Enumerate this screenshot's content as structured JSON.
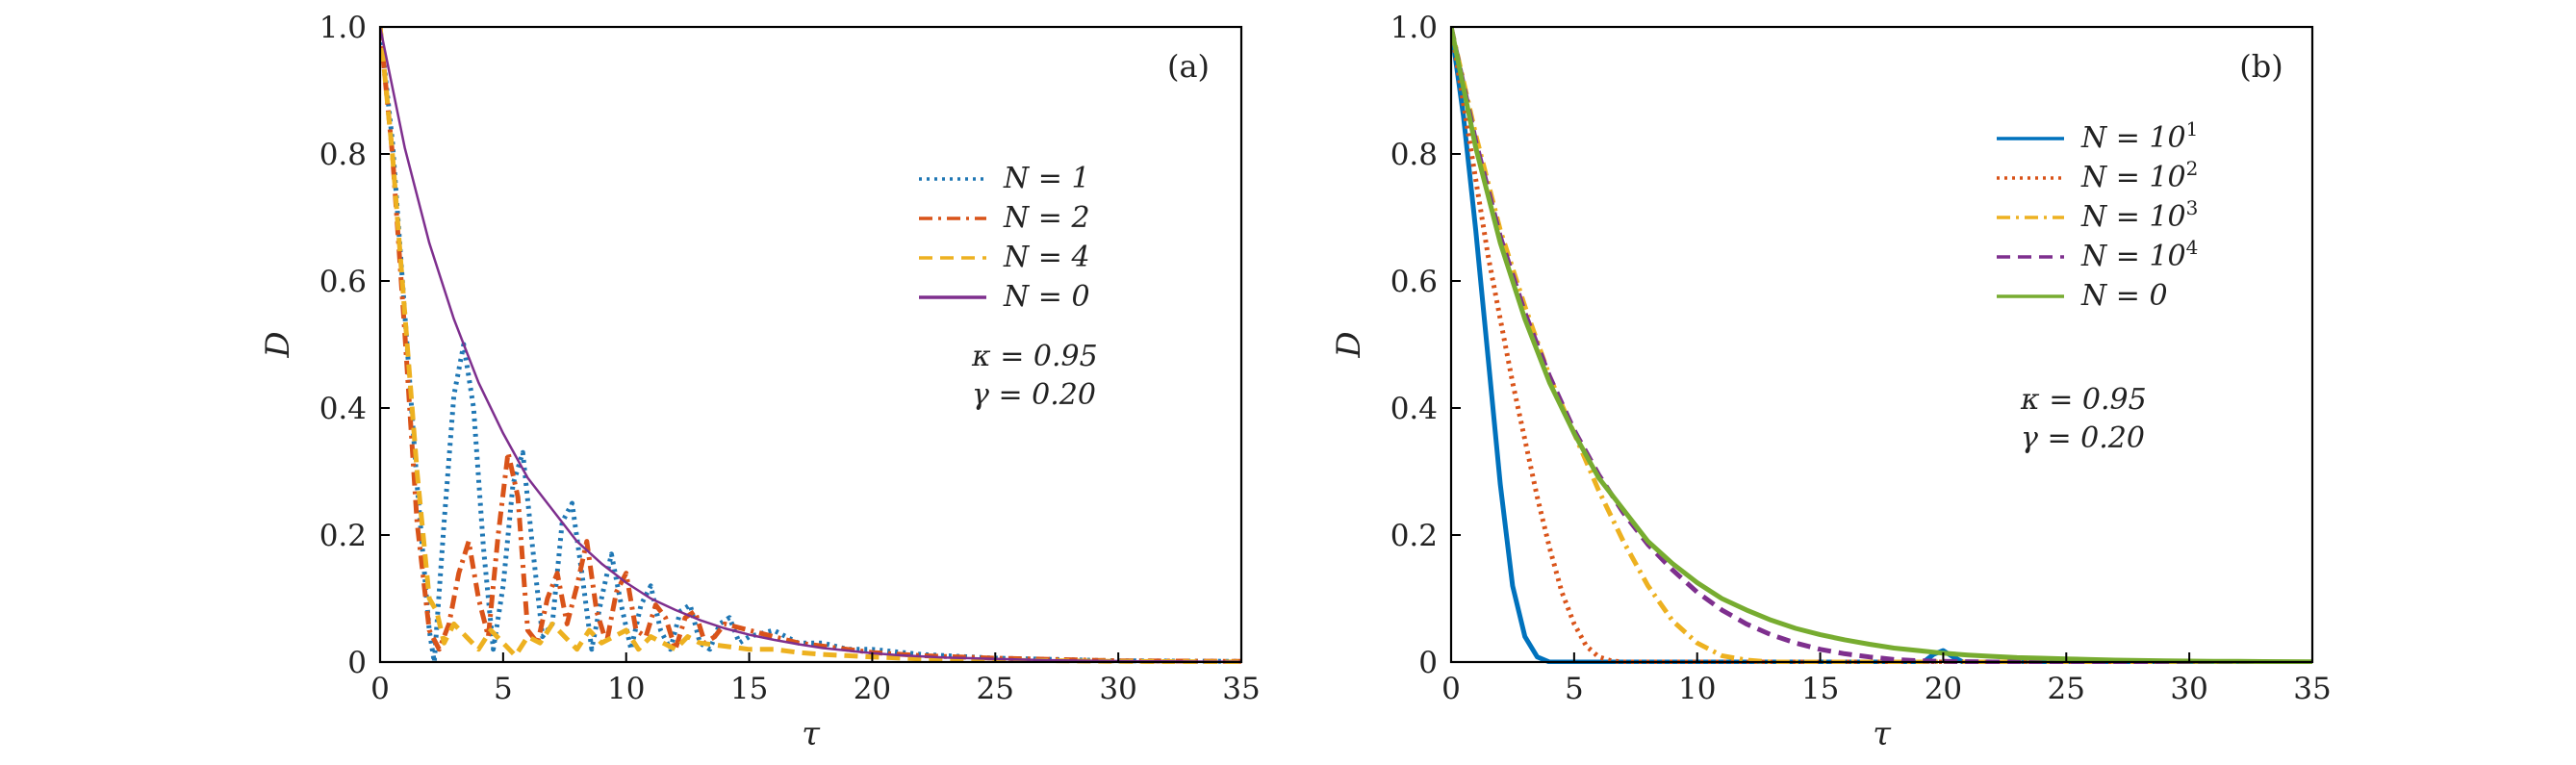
{
  "chart_data": [
    {
      "type": "line",
      "panel_label": "(a)",
      "xlabel": "τ",
      "ylabel": "D",
      "xlim": [
        0,
        35
      ],
      "ylim": [
        0,
        1.0
      ],
      "xticks": [
        "0",
        "5",
        "10",
        "15",
        "20",
        "25",
        "30",
        "35"
      ],
      "yticks": [
        "0",
        "0.2",
        "0.4",
        "0.6",
        "0.8",
        "1.0"
      ],
      "legend_position": "right",
      "annotations": [
        "κ = 0.95",
        "γ = 0.20"
      ],
      "series": [
        {
          "name_text": "N = 1",
          "color": "#1f77b4",
          "dash": "dotted",
          "x": [
            0,
            0.5,
            1.0,
            1.5,
            2.0,
            2.2,
            2.6,
            3.0,
            3.4,
            3.8,
            4.2,
            4.6,
            5.0,
            5.4,
            5.8,
            6.2,
            6.6,
            7.0,
            7.4,
            7.8,
            8.2,
            8.6,
            9.0,
            9.4,
            9.8,
            10.2,
            10.6,
            11.0,
            11.4,
            11.8,
            12.2,
            12.6,
            13.0,
            13.4,
            13.8,
            14.2,
            14.6,
            15.0,
            16.0,
            17.0,
            18.0,
            19.0,
            20.0,
            22.0,
            25.0,
            30.0,
            35.0
          ],
          "y": [
            1.0,
            0.82,
            0.55,
            0.28,
            0.05,
            0.0,
            0.22,
            0.42,
            0.5,
            0.4,
            0.18,
            0.02,
            0.12,
            0.28,
            0.33,
            0.18,
            0.04,
            0.06,
            0.22,
            0.25,
            0.14,
            0.02,
            0.1,
            0.17,
            0.09,
            0.02,
            0.09,
            0.12,
            0.05,
            0.02,
            0.08,
            0.09,
            0.03,
            0.02,
            0.06,
            0.07,
            0.03,
            0.04,
            0.05,
            0.03,
            0.03,
            0.02,
            0.02,
            0.012,
            0.006,
            0.002,
            0.001
          ]
        },
        {
          "name_text": "N = 2",
          "color": "#d95319",
          "dash": "dashdot",
          "x": [
            0,
            0.5,
            1.0,
            1.5,
            2.0,
            2.4,
            2.8,
            3.2,
            3.6,
            4.0,
            4.4,
            4.8,
            5.2,
            5.6,
            6.0,
            6.4,
            6.8,
            7.2,
            7.6,
            8.0,
            8.4,
            8.8,
            9.2,
            9.6,
            10.0,
            10.4,
            10.8,
            11.2,
            11.6,
            12.0,
            12.4,
            12.8,
            13.2,
            13.6,
            14.0,
            15.0,
            16.0,
            17.0,
            18.0,
            19.0,
            20.0,
            22.0,
            25.0,
            30.0,
            35.0
          ],
          "y": [
            1.0,
            0.8,
            0.52,
            0.22,
            0.05,
            0.02,
            0.06,
            0.14,
            0.19,
            0.1,
            0.04,
            0.2,
            0.33,
            0.26,
            0.05,
            0.03,
            0.1,
            0.14,
            0.06,
            0.12,
            0.19,
            0.08,
            0.03,
            0.11,
            0.14,
            0.05,
            0.04,
            0.09,
            0.07,
            0.02,
            0.07,
            0.08,
            0.03,
            0.04,
            0.06,
            0.05,
            0.04,
            0.03,
            0.025,
            0.02,
            0.015,
            0.01,
            0.006,
            0.002,
            0.001
          ]
        },
        {
          "name_text": "N = 4",
          "color": "#edb120",
          "dash": "dashed",
          "x": [
            0,
            0.5,
            1.0,
            1.5,
            2.0,
            2.3,
            2.6,
            3.0,
            3.5,
            4.0,
            4.5,
            5.0,
            5.5,
            6.0,
            6.5,
            7.0,
            7.5,
            8.0,
            8.5,
            9.0,
            9.5,
            10.0,
            10.5,
            11.0,
            11.5,
            12.0,
            12.5,
            13.0,
            14.0,
            15.0,
            16.0,
            17.0,
            18.0,
            19.0,
            20.0,
            22.0,
            25.0,
            30.0,
            35.0
          ],
          "y": [
            1.0,
            0.8,
            0.55,
            0.3,
            0.1,
            0.08,
            0.03,
            0.06,
            0.04,
            0.02,
            0.05,
            0.03,
            0.01,
            0.04,
            0.03,
            0.06,
            0.04,
            0.02,
            0.05,
            0.03,
            0.04,
            0.05,
            0.02,
            0.04,
            0.03,
            0.02,
            0.04,
            0.03,
            0.025,
            0.02,
            0.02,
            0.015,
            0.012,
            0.01,
            0.008,
            0.005,
            0.003,
            0.001,
            0.0
          ]
        },
        {
          "name_text": "N = 0",
          "color": "#7e2f8e",
          "dash": "solid",
          "x": [
            0,
            1,
            2,
            3,
            4,
            5,
            6,
            7,
            8,
            9,
            10,
            11,
            12,
            13,
            14,
            15,
            16,
            17,
            18,
            19,
            20,
            21,
            22,
            23,
            24,
            25,
            26,
            27,
            28,
            29,
            30,
            31,
            32,
            33,
            34,
            35
          ],
          "y": [
            1.0,
            0.81,
            0.66,
            0.54,
            0.44,
            0.36,
            0.29,
            0.24,
            0.19,
            0.155,
            0.125,
            0.1,
            0.082,
            0.066,
            0.053,
            0.043,
            0.035,
            0.028,
            0.022,
            0.018,
            0.014,
            0.011,
            0.009,
            0.007,
            0.006,
            0.005,
            0.004,
            0.003,
            0.0025,
            0.002,
            0.0015,
            0.0012,
            0.001,
            0.0008,
            0.0006,
            0.0005
          ]
        }
      ]
    },
    {
      "type": "line",
      "panel_label": "(b)",
      "xlabel": "τ",
      "ylabel": "D",
      "xlim": [
        0,
        35
      ],
      "ylim": [
        0,
        1.0
      ],
      "xticks": [
        "0",
        "5",
        "10",
        "15",
        "20",
        "25",
        "30",
        "35"
      ],
      "yticks": [
        "0",
        "0.2",
        "0.4",
        "0.6",
        "0.8",
        "1.0"
      ],
      "legend_position": "right",
      "annotations": [
        "κ = 0.95",
        "γ = 0.20"
      ],
      "series": [
        {
          "name_base": "N = 10",
          "name_exp": "1",
          "color": "#0072bd",
          "dash": "solid",
          "x": [
            0,
            0.5,
            1.0,
            1.5,
            2.0,
            2.5,
            3.0,
            3.5,
            4.0,
            4.5,
            5.0,
            8.0,
            12.0,
            16.0,
            19.2,
            19.6,
            20.0,
            20.4,
            20.8,
            25.0,
            30.0,
            35.0
          ],
          "y": [
            1.0,
            0.86,
            0.68,
            0.48,
            0.28,
            0.12,
            0.04,
            0.008,
            0.0,
            0.0,
            0.0,
            0.0,
            0.0,
            0.0,
            0.0,
            0.012,
            0.018,
            0.008,
            0.0,
            0.0,
            0.0,
            0.0
          ]
        },
        {
          "name_base": "N = 10",
          "name_exp": "2",
          "color": "#d95319",
          "dash": "dotted",
          "x": [
            0,
            0.5,
            1.0,
            1.5,
            2.0,
            2.5,
            3.0,
            3.5,
            4.0,
            4.5,
            5.0,
            5.5,
            6.0,
            6.5,
            7.0,
            8.0,
            10.0,
            15.0,
            20.0,
            25.0,
            30.0,
            35.0
          ],
          "y": [
            1.0,
            0.88,
            0.76,
            0.64,
            0.54,
            0.44,
            0.35,
            0.26,
            0.18,
            0.11,
            0.06,
            0.025,
            0.008,
            0.002,
            0.0,
            0.0,
            0.0,
            0.0,
            0.0,
            0.0,
            0.0,
            0.0
          ]
        },
        {
          "name_base": "N = 10",
          "name_exp": "3",
          "color": "#edb120",
          "dash": "dashdot",
          "x": [
            0,
            1,
            2,
            3,
            4,
            5,
            6,
            7,
            8,
            9,
            10,
            11,
            12,
            13,
            15,
            20,
            25,
            30,
            35
          ],
          "y": [
            1.0,
            0.83,
            0.68,
            0.56,
            0.45,
            0.36,
            0.27,
            0.19,
            0.12,
            0.065,
            0.03,
            0.01,
            0.003,
            0.0,
            0.0,
            0.0,
            0.0,
            0.0,
            0.0
          ]
        },
        {
          "name_base": "N = 10",
          "name_exp": "4",
          "color": "#7e2f8e",
          "dash": "dashed",
          "x": [
            0,
            1,
            2,
            3,
            4,
            5,
            6,
            7,
            8,
            9,
            10,
            11,
            12,
            13,
            14,
            15,
            16,
            17,
            18,
            19,
            20,
            22,
            25,
            30,
            35
          ],
          "y": [
            1.0,
            0.82,
            0.67,
            0.55,
            0.45,
            0.365,
            0.295,
            0.235,
            0.185,
            0.145,
            0.11,
            0.082,
            0.06,
            0.043,
            0.03,
            0.02,
            0.013,
            0.008,
            0.004,
            0.002,
            0.001,
            0.0,
            0.0,
            0.0,
            0.0
          ]
        },
        {
          "name_text": "N = 0",
          "color": "#77ac30",
          "dash": "solid",
          "x": [
            0,
            1,
            2,
            3,
            4,
            5,
            6,
            7,
            8,
            9,
            10,
            11,
            12,
            13,
            14,
            15,
            16,
            17,
            18,
            19,
            20,
            21,
            22,
            23,
            24,
            25,
            26,
            27,
            28,
            29,
            30,
            31,
            32,
            33,
            34,
            35
          ],
          "y": [
            1.0,
            0.81,
            0.66,
            0.54,
            0.44,
            0.36,
            0.29,
            0.24,
            0.19,
            0.155,
            0.125,
            0.1,
            0.082,
            0.066,
            0.053,
            0.043,
            0.035,
            0.028,
            0.022,
            0.018,
            0.014,
            0.011,
            0.009,
            0.007,
            0.006,
            0.005,
            0.004,
            0.003,
            0.0025,
            0.002,
            0.0015,
            0.0012,
            0.001,
            0.0008,
            0.0006,
            0.0005
          ]
        }
      ]
    }
  ]
}
